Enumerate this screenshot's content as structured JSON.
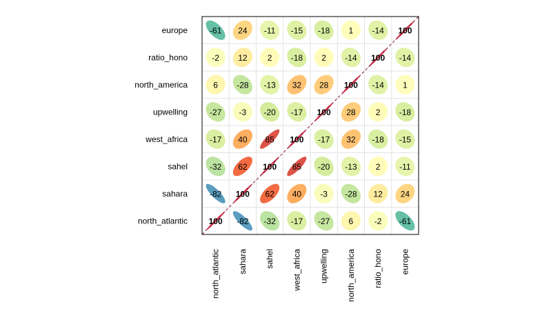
{
  "chart_data": {
    "type": "heatmap",
    "style": "ellipse correlation matrix (corrplot)",
    "variables": [
      "north_atlantic",
      "sahara",
      "sahel",
      "west_africa",
      "upwelling",
      "north_america",
      "ratio_hono",
      "europe"
    ],
    "row_order_top_to_bottom": [
      "europe",
      "ratio_hono",
      "north_america",
      "upwelling",
      "west_africa",
      "sahel",
      "sahara",
      "north_atlantic"
    ],
    "column_order_left_to_right": [
      "north_atlantic",
      "sahara",
      "sahel",
      "west_africa",
      "upwelling",
      "north_america",
      "ratio_hono",
      "europe"
    ],
    "matrix": [
      [
        100,
        -82,
        -32,
        -17,
        -27,
        6,
        -2,
        -61
      ],
      [
        -82,
        100,
        62,
        40,
        -3,
        -28,
        12,
        24
      ],
      [
        -32,
        62,
        100,
        85,
        -20,
        -13,
        2,
        -11
      ],
      [
        -17,
        40,
        85,
        100,
        -17,
        32,
        -18,
        -15
      ],
      [
        -27,
        -3,
        -20,
        -17,
        100,
        28,
        2,
        -18
      ],
      [
        6,
        -28,
        -13,
        32,
        28,
        100,
        -14,
        1
      ],
      [
        -2,
        12,
        2,
        -18,
        2,
        -14,
        100,
        -14
      ],
      [
        -61,
        24,
        -11,
        -15,
        -18,
        1,
        -14,
        100
      ]
    ],
    "value_scale": "correlation x 100",
    "color_scale": "Spectral diverging (blue = negative, yellow = 0, red = positive)",
    "diagonal_line": true,
    "grid": true,
    "legend": "none"
  }
}
